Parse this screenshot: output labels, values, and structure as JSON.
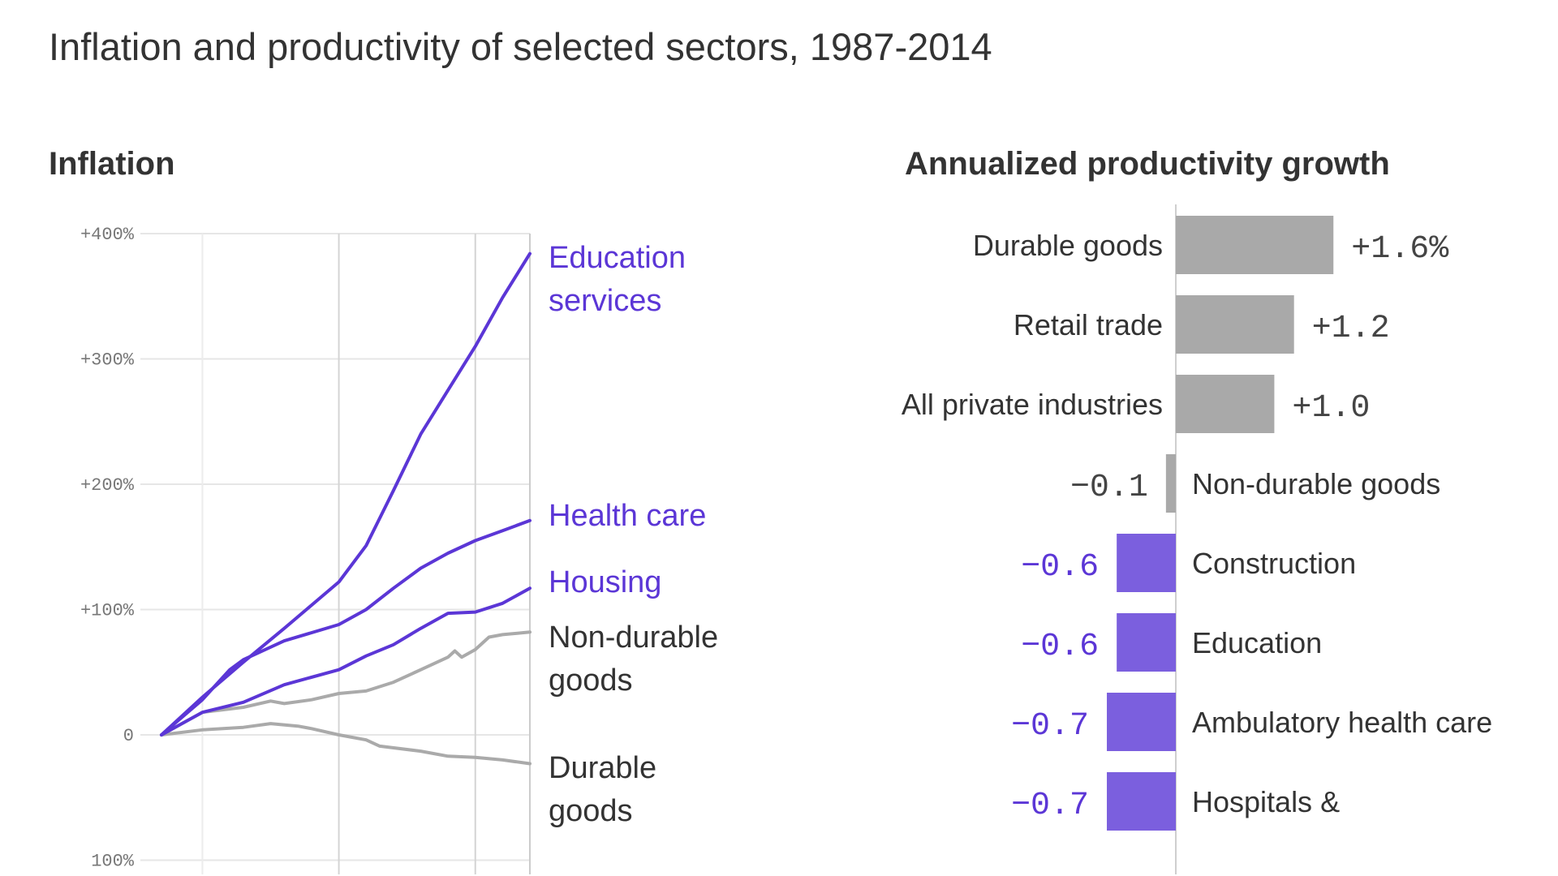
{
  "title": "Inflation and productivity of selected sectors, 1987-2014",
  "colors": {
    "accent": "#5b36d6",
    "accent_bar": "#7b5fde",
    "neutral_line": "#aaaaaa",
    "neutral_bar": "#a9a9a9",
    "grid": "#e4e4e4"
  },
  "chart_data": [
    {
      "type": "line",
      "title": "Inflation",
      "xlim": [
        1987,
        2014
      ],
      "ylim": [
        -100,
        400
      ],
      "y_ticks": [
        400,
        300,
        200,
        100,
        0,
        -100
      ],
      "y_tick_labels": [
        "+400%",
        "+300%",
        "+200%",
        "+100%",
        "0",
        "100%"
      ],
      "x_gridlines": [
        1990,
        2000,
        2010
      ],
      "grid": true,
      "series": [
        {
          "name": "Education services",
          "highlight": true,
          "x": [
            1987,
            1990,
            1993,
            1996,
            2000,
            2002,
            2004,
            2006,
            2008,
            2010,
            2012,
            2014
          ],
          "y": [
            0,
            30,
            58,
            85,
            122,
            151,
            195,
            240,
            275,
            310,
            349,
            384
          ]
        },
        {
          "name": "Health care",
          "highlight": true,
          "x": [
            1987,
            1990,
            1992,
            1993,
            1996,
            2000,
            2002,
            2004,
            2006,
            2008,
            2010,
            2012,
            2014
          ],
          "y": [
            0,
            28,
            52,
            60,
            75,
            88,
            100,
            117,
            133,
            145,
            155,
            163,
            171
          ]
        },
        {
          "name": "Housing",
          "highlight": true,
          "x": [
            1987,
            1990,
            1993,
            1996,
            2000,
            2002,
            2004,
            2006,
            2008,
            2010,
            2012,
            2014
          ],
          "y": [
            0,
            18,
            26,
            40,
            52,
            63,
            72,
            85,
            97,
            98,
            105,
            117
          ]
        },
        {
          "name": "Non-durable goods",
          "highlight": false,
          "x": [
            1987,
            1990,
            1993,
            1995,
            1996,
            1998,
            2000,
            2002,
            2004,
            2006,
            2008,
            2008.5,
            2009,
            2010,
            2011,
            2012,
            2014
          ],
          "y": [
            0,
            18,
            22,
            27,
            25,
            28,
            33,
            35,
            42,
            52,
            62,
            67,
            62,
            68,
            78,
            80,
            82
          ]
        },
        {
          "name": "Durable goods",
          "highlight": false,
          "x": [
            1987,
            1990,
            1993,
            1995,
            1997,
            1998,
            2000,
            2002,
            2003,
            2006,
            2008,
            2010,
            2012,
            2014
          ],
          "y": [
            0,
            4,
            6,
            9,
            7,
            5,
            0,
            -4,
            -9,
            -13,
            -17,
            -18,
            -20,
            -23
          ]
        }
      ],
      "labels": [
        {
          "series": "Education services",
          "lines": [
            "Education",
            "services"
          ]
        },
        {
          "series": "Health care",
          "lines": [
            "Health care"
          ]
        },
        {
          "series": "Housing",
          "lines": [
            "Housing"
          ]
        },
        {
          "series": "Non-durable goods",
          "lines": [
            "Non-durable",
            "goods"
          ]
        },
        {
          "series": "Durable goods",
          "lines": [
            "Durable",
            "goods"
          ]
        }
      ]
    },
    {
      "type": "bar",
      "orientation": "horizontal",
      "title": "Annualized productivity growth",
      "categories": [
        "Durable goods",
        "Retail trade",
        "All private industries",
        "Non-durable goods",
        "Construction",
        "Education",
        "Ambulatory health care",
        "Hospitals &"
      ],
      "values": [
        1.6,
        1.2,
        1.0,
        -0.1,
        -0.6,
        -0.6,
        -0.7,
        -0.7
      ],
      "value_labels": [
        "+1.6%",
        "+1.2",
        "+1.0",
        "−0.1",
        "−0.6",
        "−0.6",
        "−0.7",
        "−0.7"
      ],
      "highlight": [
        false,
        false,
        false,
        false,
        true,
        true,
        true,
        true
      ]
    }
  ]
}
